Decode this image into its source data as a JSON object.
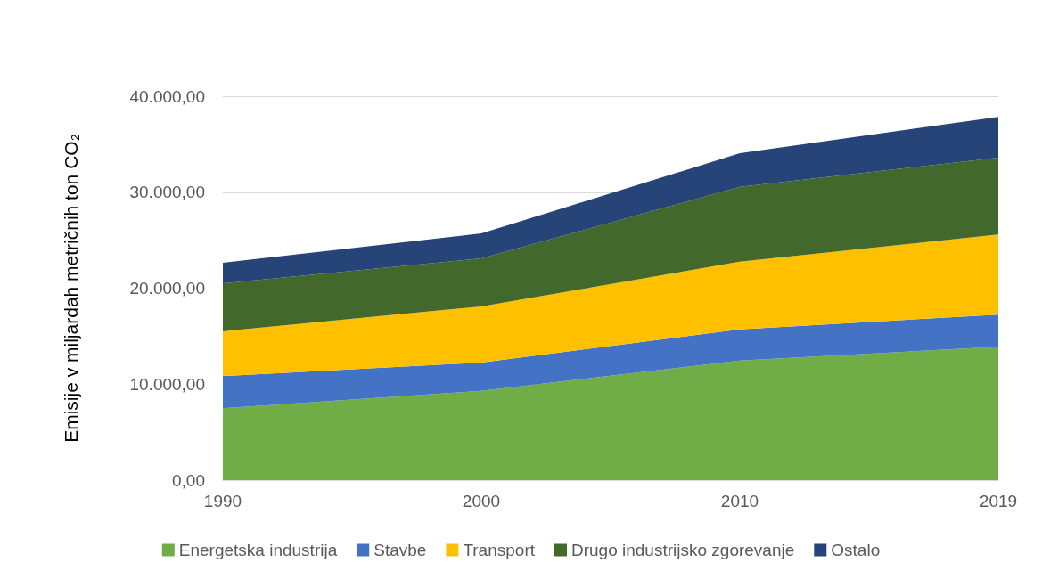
{
  "chart_data": {
    "type": "area",
    "stacked": true,
    "ylabel": "Emisije v miljardah metričnih ton CO₂",
    "categories": [
      "1990",
      "2000",
      "2010",
      "2019"
    ],
    "series": [
      {
        "name": "Energetska industrija",
        "color": "#70ad47",
        "values": [
          7500,
          9300,
          12450,
          13900
        ]
      },
      {
        "name": "Stavbe",
        "color": "#4472c4",
        "values": [
          3350,
          2950,
          3250,
          3350
        ]
      },
      {
        "name": "Transport",
        "color": "#ffc000",
        "values": [
          4650,
          5850,
          7050,
          8350
        ]
      },
      {
        "name": "Drugo industrijsko zgorevanje",
        "color": "#43682b",
        "values": [
          5000,
          5000,
          7800,
          8000
        ]
      },
      {
        "name": "Ostalo",
        "color": "#264478",
        "values": [
          2150,
          2600,
          3500,
          4250
        ]
      }
    ],
    "ylim": [
      0,
      40000
    ],
    "yticks": [
      {
        "value": 0,
        "label": "0,00"
      },
      {
        "value": 10000,
        "label": "10.000,00"
      },
      {
        "value": 20000,
        "label": "20.000,00"
      },
      {
        "value": 30000,
        "label": "30.000,00"
      },
      {
        "value": 40000,
        "label": "40.000,00"
      }
    ],
    "grid": "y",
    "legend": "bottom",
    "marker": "none"
  }
}
